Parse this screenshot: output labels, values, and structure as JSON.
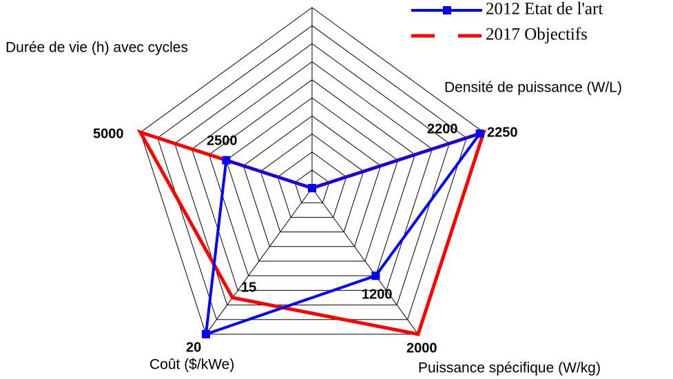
{
  "chart_data": {
    "type": "radar",
    "categories": [
      null,
      "Densité de puissance (W/L)",
      "Puissance spécifique (W/kg)",
      "Coût ($/kWe)",
      "Durée de vie (h) avec cycles"
    ],
    "series": [
      {
        "name": "2012 Etat de l'art",
        "color": "#0000ff",
        "marker": "square",
        "values": [
          0,
          2200,
          1200,
          20,
          2500
        ]
      },
      {
        "name": "2017 Objectifs",
        "color": "#ff0000",
        "marker": "none",
        "values": [
          0,
          2250,
          2000,
          15,
          5000
        ]
      }
    ],
    "grid_rings": 10,
    "legend": "top-right"
  }
}
